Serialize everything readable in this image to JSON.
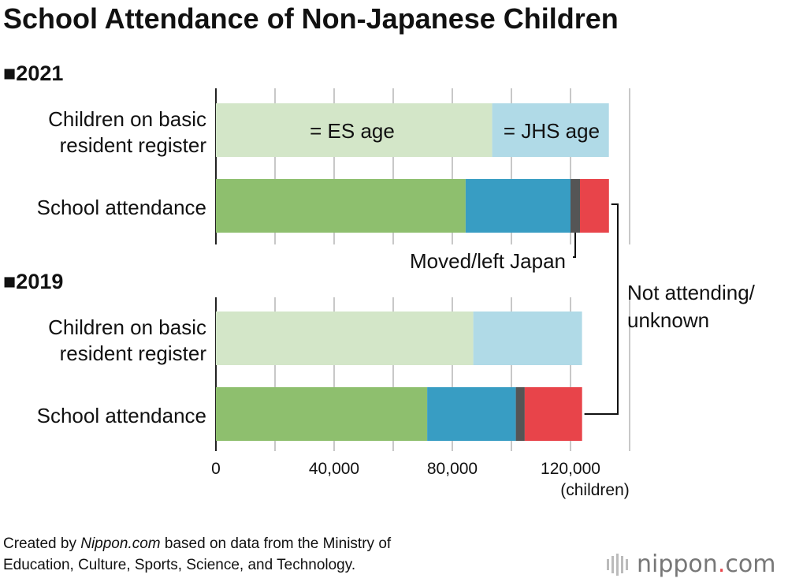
{
  "title": "School Attendance of Non-Japanese Children",
  "footer": {
    "prefix": "Created by ",
    "source_name": "Nippon.com",
    "suffix_line1": " based on data from the Ministry of",
    "line2": "Education, Culture, Sports, Science, and Technology."
  },
  "logo": {
    "name": "nippon",
    "dot": ".",
    "tld": "com"
  },
  "chart_data": {
    "type": "bar",
    "orientation": "horizontal",
    "stacked": true,
    "title": "School Attendance of Non-Japanese Children",
    "xlabel": "(children)",
    "xlim": [
      0,
      140000
    ],
    "xticks": [
      0,
      40000,
      80000,
      120000
    ],
    "xtick_labels": [
      "0",
      "40,000",
      "80,000",
      "120,000"
    ],
    "gridlines": [
      0,
      20000,
      40000,
      60000,
      80000,
      100000,
      120000,
      140000
    ],
    "series_colors": {
      "es_register": "#d3e6c8",
      "jhs_register": "#b0dae7",
      "es_attending": "#8ebf6e",
      "jhs_attending": "#389dc3",
      "moved": "#555555",
      "not_attending": "#e8444a"
    },
    "groups": [
      {
        "year": "■2021",
        "bars": [
          {
            "label_lines": [
              "Children on basic",
              "resident register"
            ],
            "segments": [
              {
                "key": "es_register",
                "value": 93500,
                "label": "= ES age"
              },
              {
                "key": "jhs_register",
                "value": 39500,
                "label": "= JHS age"
              }
            ]
          },
          {
            "label_lines": [
              "School attendance"
            ],
            "segments": [
              {
                "key": "es_attending",
                "value": 84500
              },
              {
                "key": "jhs_attending",
                "value": 35500
              },
              {
                "key": "moved",
                "value": 3200
              },
              {
                "key": "not_attending",
                "value": 9800
              }
            ]
          }
        ]
      },
      {
        "year": "■2019",
        "bars": [
          {
            "label_lines": [
              "Children on basic",
              "resident register"
            ],
            "segments": [
              {
                "key": "es_register",
                "value": 87100
              },
              {
                "key": "jhs_register",
                "value": 36800
              }
            ]
          },
          {
            "label_lines": [
              "School attendance"
            ],
            "segments": [
              {
                "key": "es_attending",
                "value": 71500
              },
              {
                "key": "jhs_attending",
                "value": 30000
              },
              {
                "key": "moved",
                "value": 3000
              },
              {
                "key": "not_attending",
                "value": 19400
              }
            ]
          }
        ]
      }
    ],
    "annotations": {
      "moved_label": "Moved/left Japan",
      "not_attending_lines": [
        "Not attending/",
        "unknown"
      ]
    }
  }
}
